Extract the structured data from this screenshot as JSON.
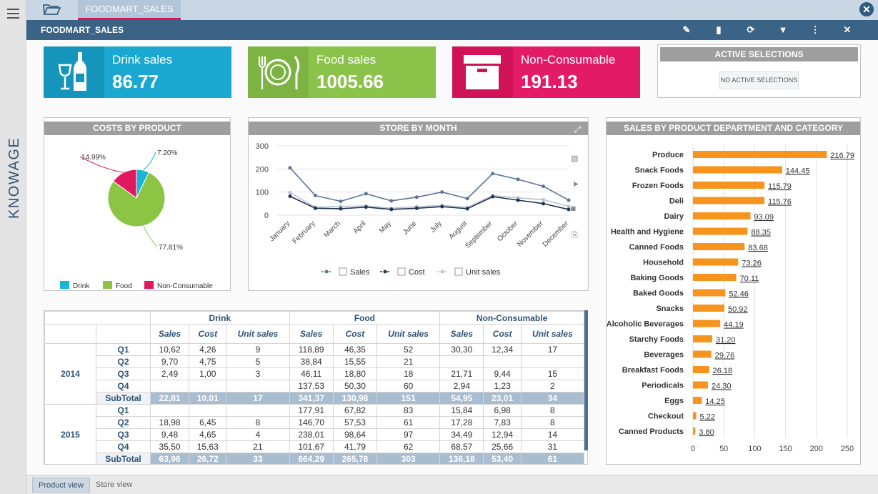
{
  "app": {
    "brand": "KNOWAGE"
  },
  "tabs": [
    {
      "label": "FOODMART_SALES"
    }
  ],
  "header": {
    "title": "FOODMART_SALES"
  },
  "kpis": [
    {
      "label": "Drink sales",
      "value": "86.77",
      "color": "#1aa8d0",
      "icon": "wine-bottle-icon"
    },
    {
      "label": "Food sales",
      "value": "1005.66",
      "color": "#8bc34a",
      "icon": "plate-cutlery-icon"
    },
    {
      "label": "Non-Consumable",
      "value": "191.13",
      "color": "#e31b67",
      "icon": "box-icon"
    }
  ],
  "active_selections": {
    "title": "ACTIVE SELECTIONS",
    "empty_text": "NO ACTIVE SELECTIONS"
  },
  "costs_by_product": {
    "title": "COSTS BY PRODUCT",
    "chart_data": {
      "type": "pie",
      "categories": [
        "Drink",
        "Food",
        "Non-Consumable"
      ],
      "values": [
        7.2,
        77.81,
        14.99
      ],
      "labels": [
        "7.20%",
        "77.81%",
        "14.99%"
      ],
      "colors": [
        "#1ab6d3",
        "#8cc544",
        "#e0185e"
      ],
      "legend_position": "bottom"
    }
  },
  "store_by_month": {
    "title": "STORE BY MONTH",
    "chart_data": {
      "type": "line",
      "categories": [
        "January",
        "February",
        "March",
        "April",
        "May",
        "June",
        "July",
        "August",
        "September",
        "October",
        "November",
        "December"
      ],
      "ylim": [
        0,
        300
      ],
      "yticks": [
        "0",
        "100",
        "200",
        "300"
      ],
      "series": [
        {
          "name": "Sales",
          "color": "#5b7596",
          "values": [
            205,
            85,
            60,
            93,
            62,
            78,
            100,
            72,
            180,
            155,
            125,
            65
          ]
        },
        {
          "name": "Cost",
          "color": "#1f3350",
          "values": [
            82,
            30,
            28,
            35,
            25,
            30,
            37,
            28,
            80,
            65,
            50,
            25
          ]
        },
        {
          "name": "Unit sales",
          "color": "#b9c3cf",
          "values": [
            98,
            34,
            38,
            40,
            30,
            37,
            42,
            34,
            85,
            75,
            67,
            38
          ]
        }
      ],
      "legend_position": "bottom"
    }
  },
  "sales_by_department": {
    "title": "SALES BY PRODUCT DEPARTMENT AND CATEGORY",
    "chart_data": {
      "type": "bar",
      "orientation": "horizontal",
      "categories": [
        "Produce",
        "Snack Foods",
        "Frozen Foods",
        "Deli",
        "Dairy",
        "Health and Hygiene",
        "Canned Foods",
        "Household",
        "Baking Goods",
        "Baked Goods",
        "Snacks",
        "Alcoholic Beverages",
        "Starchy Foods",
        "Beverages",
        "Breakfast Foods",
        "Periodicals",
        "Eggs",
        "Checkout",
        "Canned Products"
      ],
      "values": [
        216.79,
        144.45,
        115.79,
        115.76,
        93.09,
        88.35,
        83.68,
        73.26,
        70.11,
        52.46,
        50.92,
        44.19,
        31.2,
        29.76,
        26.18,
        24.3,
        14.25,
        5.22,
        3.8
      ],
      "labels": [
        "216.79",
        "144.45",
        "115.79",
        "115.76",
        "93.09",
        "88.35",
        "83.68",
        "73.26",
        "70.11",
        "52.46",
        "50.92",
        "44.19",
        "31.20",
        "29.76",
        "26.18",
        "24.30",
        "14.25",
        "5.22",
        "3.80"
      ],
      "xlim": [
        0,
        250
      ],
      "xticks": [
        "0",
        "50",
        "100",
        "150",
        "200",
        "250"
      ],
      "color": "#f7941d"
    }
  },
  "pivot": {
    "groups": [
      "Drink",
      "Food",
      "Non-Consumable"
    ],
    "measures": [
      "Sales",
      "Cost",
      "Unit sales"
    ],
    "years": [
      {
        "year": "2014",
        "rows": [
          {
            "q": "Q1",
            "v": [
              "10,62",
              "4,26",
              "9",
              "118,89",
              "46,35",
              "52",
              "30,30",
              "12,34",
              "17"
            ]
          },
          {
            "q": "Q2",
            "v": [
              "9,70",
              "4,75",
              "5",
              "38,84",
              "15,55",
              "21",
              "",
              "",
              ""
            ]
          },
          {
            "q": "Q3",
            "v": [
              "2,49",
              "1,00",
              "3",
              "46,11",
              "18,80",
              "18",
              "21,71",
              "9,44",
              "15"
            ]
          },
          {
            "q": "Q4",
            "v": [
              "",
              "",
              "",
              "137,53",
              "50,30",
              "60",
              "2,94",
              "1,23",
              "2"
            ]
          }
        ],
        "subtotal_label": "SubTotal",
        "subtotal": [
          "22,81",
          "10,01",
          "17",
          "341,37",
          "130,98",
          "151",
          "54,95",
          "23,01",
          "34"
        ]
      },
      {
        "year": "2015",
        "rows": [
          {
            "q": "Q1",
            "v": [
              "",
              "",
              "",
              "177,91",
              "67,82",
              "83",
              "15,84",
              "6,98",
              "8"
            ]
          },
          {
            "q": "Q2",
            "v": [
              "18,98",
              "6,45",
              "8",
              "146,70",
              "57,53",
              "61",
              "17,28",
              "7,83",
              "8"
            ]
          },
          {
            "q": "Q3",
            "v": [
              "9,48",
              "4,65",
              "4",
              "238,01",
              "98,64",
              "97",
              "34,49",
              "12,94",
              "14"
            ]
          },
          {
            "q": "Q4",
            "v": [
              "35,50",
              "15,63",
              "21",
              "101,67",
              "41,79",
              "62",
              "68,57",
              "25,66",
              "31"
            ]
          }
        ],
        "subtotal_label": "SubTotal",
        "subtotal": [
          "63,96",
          "26,72",
          "33",
          "664,29",
          "265,78",
          "303",
          "136,18",
          "53,40",
          "61"
        ]
      }
    ]
  },
  "sheets": [
    {
      "label": "Product view",
      "active": true
    },
    {
      "label": "Store view",
      "active": false
    }
  ]
}
